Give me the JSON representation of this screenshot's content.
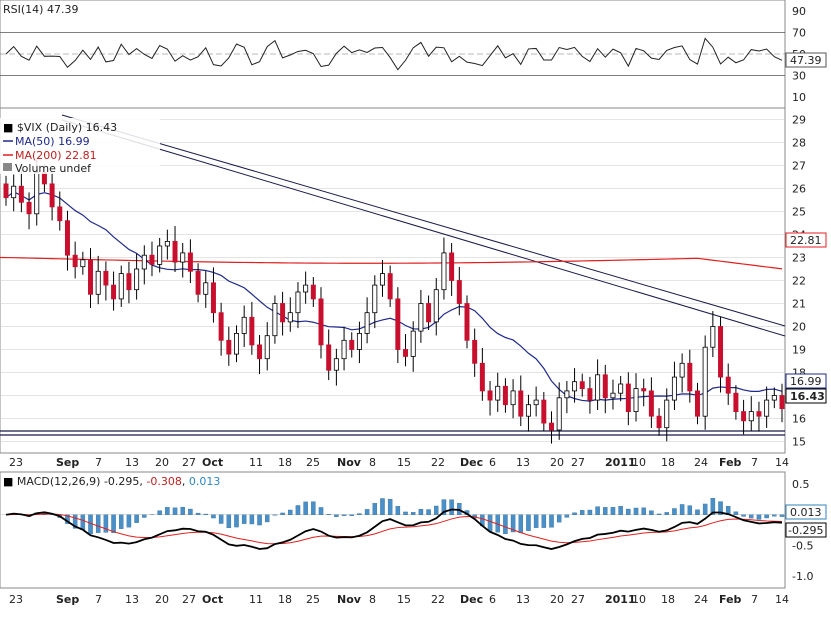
{
  "colors": {
    "up": "#ffffff",
    "down": "#c8102e",
    "wick": "#000000",
    "ma50": "#1f2a8a",
    "ma200": "#e02020",
    "rsi": "#222222",
    "macd": "#000000",
    "signal": "#e02020",
    "hist": "#4a90c8",
    "trend": "#1a1a4a",
    "support": "#1a1a4a",
    "grid": "#c8c8c8"
  },
  "rsi_panel": {
    "label": "RSI(14)",
    "value": "47.39",
    "value_label": "47.39",
    "ticks": [
      "90",
      "70",
      "50",
      "30",
      "10"
    ]
  },
  "price_panel": {
    "symbol_label": "$VIX (Daily)",
    "last": "16.43",
    "last_label": "16.43",
    "ma50_label": "MA(50)",
    "ma50_value": "16.99",
    "ma50_tag": "16.99",
    "ma200_label": "MA(200)",
    "ma200_value": "22.81",
    "ma200_tag": "22.81",
    "volume_label": "Volume undef",
    "y_ticks": [
      "29",
      "28",
      "27",
      "26",
      "25",
      "24",
      "23",
      "22",
      "21",
      "20",
      "19",
      "18",
      "17",
      "16",
      "15"
    ]
  },
  "x_axis_labels": [
    "23",
    "Sep",
    "7",
    "13",
    "20",
    "27",
    "Oct",
    "11",
    "18",
    "25",
    "Nov",
    "8",
    "15",
    "22",
    "Dec",
    "6",
    "13",
    "20",
    "27",
    "2011",
    "10",
    "18",
    "24",
    "Feb",
    "7",
    "14"
  ],
  "macd_panel": {
    "label": "MACD(12,26,9)",
    "macd": "-0.295",
    "signal": "-0.308",
    "hist": "0.013",
    "hist_tag": "0.013",
    "macd_tag": "-0.295",
    "ticks": [
      "0.5",
      "-0.5",
      "-1.0"
    ]
  },
  "chart_data": {
    "type": "candlestick",
    "title": "$VIX (Daily)",
    "y_range": [
      14.5,
      29.5
    ],
    "series": [
      {
        "name": "$VIX (Daily)",
        "last": 16.43,
        "close": [
          25.6,
          26.1,
          25.4,
          24.9,
          26.7,
          26.2,
          25.2,
          24.6,
          23.1,
          22.6,
          22.9,
          21.4,
          22.4,
          21.8,
          21.2,
          22.3,
          21.6,
          22.5,
          23.1,
          22.7,
          23.5,
          23.7,
          22.8,
          23.2,
          22.4,
          21.4,
          21.9,
          20.6,
          19.4,
          18.8,
          19.7,
          20.4,
          19.2,
          18.6,
          19.6,
          21.0,
          20.2,
          20.6,
          21.5,
          21.8,
          21.2,
          19.2,
          18.1,
          18.6,
          19.4,
          19.0,
          19.7,
          20.6,
          21.8,
          22.3,
          21.2,
          19.0,
          18.7,
          19.8,
          21.0,
          20.2,
          21.6,
          23.2,
          22.0,
          21.0,
          19.4,
          18.4,
          17.2,
          16.8,
          17.4,
          16.6,
          17.2,
          16.1,
          16.6,
          16.8,
          15.8,
          15.5,
          16.9,
          17.2,
          17.6,
          17.3,
          16.8,
          17.9,
          16.9,
          17.1,
          17.5,
          16.3,
          17.3,
          17.2,
          16.1,
          15.6,
          16.8,
          17.8,
          18.4,
          17.2,
          16.1,
          19.1,
          20.0,
          17.8,
          17.1,
          16.3,
          15.9,
          16.3,
          16.1,
          16.8,
          17.0,
          16.43
        ]
      },
      {
        "name": "MA(50)",
        "last": 16.99
      },
      {
        "name": "MA(200)",
        "last": 22.81
      }
    ],
    "annotations": [
      "trend channel from Aug high through Feb",
      "support line near 15.2"
    ],
    "x_labels": [
      "23",
      "Sep",
      "7",
      "13",
      "20",
      "27",
      "Oct",
      "11",
      "18",
      "25",
      "Nov",
      "8",
      "15",
      "22",
      "Dec",
      "6",
      "13",
      "20",
      "27",
      "2011",
      "10",
      "18",
      "24",
      "Feb",
      "7",
      "14"
    ],
    "rsi": {
      "value": 47.39,
      "range": [
        0,
        100
      ],
      "levels": [
        30,
        70
      ]
    },
    "macd": {
      "params": "12,26,9",
      "macd": -0.295,
      "signal": -0.308,
      "histogram": 0.013,
      "range": [
        -1.2,
        0.7
      ]
    }
  }
}
